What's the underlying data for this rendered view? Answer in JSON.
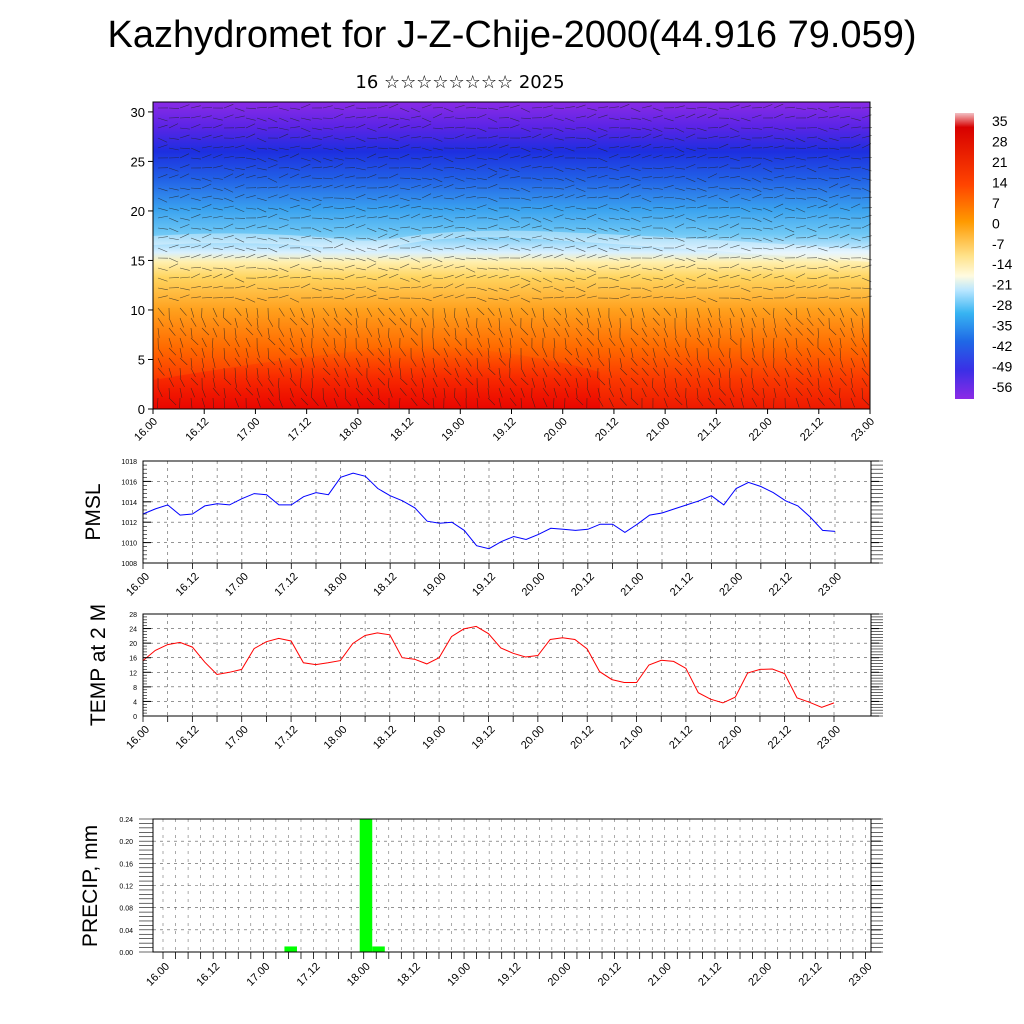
{
  "title": "Kazhydromet for J-Z-Chije-2000(44.916 79.059)",
  "subtitle": "16 ☆☆☆☆☆☆☆☆ 2025",
  "colors": {
    "pmsl_line": "#0000ff",
    "temp_line": "#ff0000",
    "precip_bar": "#00ff00",
    "grid": "#555555"
  },
  "time_ticks": [
    "16.00",
    "16.12",
    "17.00",
    "17.12",
    "18.00",
    "18.12",
    "19.00",
    "19.12",
    "20.00",
    "20.12",
    "21.00",
    "21.12",
    "22.00",
    "22.12",
    "23.00"
  ],
  "chart_data": [
    {
      "type": "heatmap",
      "title": "",
      "ylim": [
        0,
        31
      ],
      "yticks": [
        "0",
        "5",
        "10",
        "15",
        "20",
        "25",
        "30"
      ],
      "xticks": [
        "16.00",
        "16.12",
        "17.00",
        "17.12",
        "18.00",
        "18.12",
        "19.00",
        "19.12",
        "20.00",
        "20.12",
        "21.00",
        "21.12",
        "22.00",
        "22.12",
        "23.00"
      ],
      "colorbar_labels": [
        "35",
        "28",
        "21",
        "14",
        "7",
        "0",
        "-7",
        "-14",
        "-21",
        "-28",
        "-35",
        "-42",
        "-49",
        "-56"
      ],
      "overlay": "wind barbs"
    },
    {
      "type": "line",
      "ylabel": "PMSL",
      "ylim": [
        1008,
        1018
      ],
      "yticks": [
        "1008",
        "1010",
        "1012",
        "1014",
        "1016",
        "1018"
      ],
      "xticks": [
        "16.00",
        "16.12",
        "17.00",
        "17.12",
        "18.00",
        "18.12",
        "19.00",
        "19.12",
        "20.00",
        "20.12",
        "21.00",
        "21.12",
        "22.00",
        "22.12",
        "23.00"
      ],
      "x_hours": [
        0,
        3,
        6,
        9,
        12,
        15,
        18,
        21,
        24,
        27,
        30,
        33,
        36,
        39,
        42,
        45,
        48,
        51,
        54,
        57,
        60,
        63,
        66,
        69,
        72,
        75,
        78,
        81,
        84,
        87,
        90,
        93,
        96,
        99,
        102,
        105,
        108,
        111,
        114,
        117,
        120,
        123,
        126,
        129,
        132,
        135,
        138,
        141,
        144,
        147,
        150,
        153,
        156,
        159,
        162,
        165,
        168
      ],
      "series": [
        {
          "values": [
            1012.8,
            1013.3,
            1013.7,
            1012.7,
            1012.8,
            1013.6,
            1013.8,
            1013.7,
            1014.3,
            1014.8,
            1014.7,
            1013.7,
            1013.7,
            1014.5,
            1014.9,
            1014.7,
            1016.4,
            1016.8,
            1016.5,
            1015.3,
            1014.6,
            1014.1,
            1013.4,
            1012.1,
            1011.9,
            1012.0,
            1011.2,
            1009.7,
            1009.4,
            1010.1,
            1010.6,
            1010.3,
            1010.8,
            1011.4,
            1011.3,
            1011.2,
            1011.3,
            1011.8,
            1011.8,
            1011.0,
            1011.8,
            1012.7,
            1012.9,
            1013.3,
            1013.7,
            1014.1,
            1014.6,
            1013.7,
            1015.3,
            1015.9,
            1015.5,
            1014.9,
            1014.1,
            1013.6,
            1012.5,
            1011.2,
            1011.1
          ]
        }
      ]
    },
    {
      "type": "line",
      "ylabel": "TEMP at 2 M",
      "ylim": [
        0,
        28
      ],
      "yticks": [
        "0",
        "4",
        "8",
        "12",
        "16",
        "20",
        "24",
        "28"
      ],
      "xticks": [
        "16.00",
        "16.12",
        "17.00",
        "17.12",
        "18.00",
        "18.12",
        "19.00",
        "19.12",
        "20.00",
        "20.12",
        "21.00",
        "21.12",
        "22.00",
        "22.12",
        "23.00"
      ],
      "x_hours": [
        0,
        3,
        6,
        9,
        12,
        15,
        18,
        21,
        24,
        27,
        30,
        33,
        36,
        39,
        42,
        45,
        48,
        51,
        54,
        57,
        60,
        63,
        66,
        69,
        72,
        75,
        78,
        81,
        84,
        87,
        90,
        93,
        96,
        99,
        102,
        105,
        108,
        111,
        114,
        117,
        120,
        123,
        126,
        129,
        132,
        135,
        138,
        141,
        144,
        147,
        150,
        153,
        156,
        159,
        162,
        165,
        168
      ],
      "series": [
        {
          "values": [
            15.2,
            18.0,
            19.6,
            20.2,
            18.9,
            14.8,
            11.4,
            12.0,
            12.8,
            18.5,
            20.4,
            21.3,
            20.6,
            14.6,
            14.1,
            14.6,
            15.2,
            19.9,
            22.1,
            22.8,
            22.3,
            16.0,
            15.6,
            14.3,
            16.0,
            21.8,
            23.9,
            24.6,
            22.6,
            18.7,
            17.2,
            16.2,
            16.6,
            21.0,
            21.5,
            21.0,
            18.4,
            12.2,
            10.0,
            9.2,
            9.2,
            14.0,
            15.3,
            15.0,
            13.1,
            6.4,
            4.6,
            3.6,
            5.2,
            11.8,
            12.8,
            12.9,
            11.6,
            5.0,
            3.8,
            2.4,
            3.6
          ]
        }
      ]
    },
    {
      "type": "bar",
      "ylabel": "PRECIP, mm",
      "ylim": [
        0,
        0.24
      ],
      "yticks": [
        "0.00",
        "0.04",
        "0.08",
        "0.12",
        "0.16",
        "0.20",
        "0.24"
      ],
      "xticks": [
        "16.00",
        "16.12",
        "17.00",
        "17.12",
        "18.00",
        "18.12",
        "19.00",
        "19.12",
        "20.00",
        "20.12",
        "21.00",
        "21.12",
        "22.00",
        "22.12",
        "23.00"
      ],
      "bars": [
        {
          "start_hour": 30,
          "end_hour": 33,
          "value": 0.01
        },
        {
          "start_hour": 48,
          "end_hour": 51,
          "value": 0.24
        },
        {
          "start_hour": 51,
          "end_hour": 54,
          "value": 0.01
        }
      ]
    }
  ]
}
